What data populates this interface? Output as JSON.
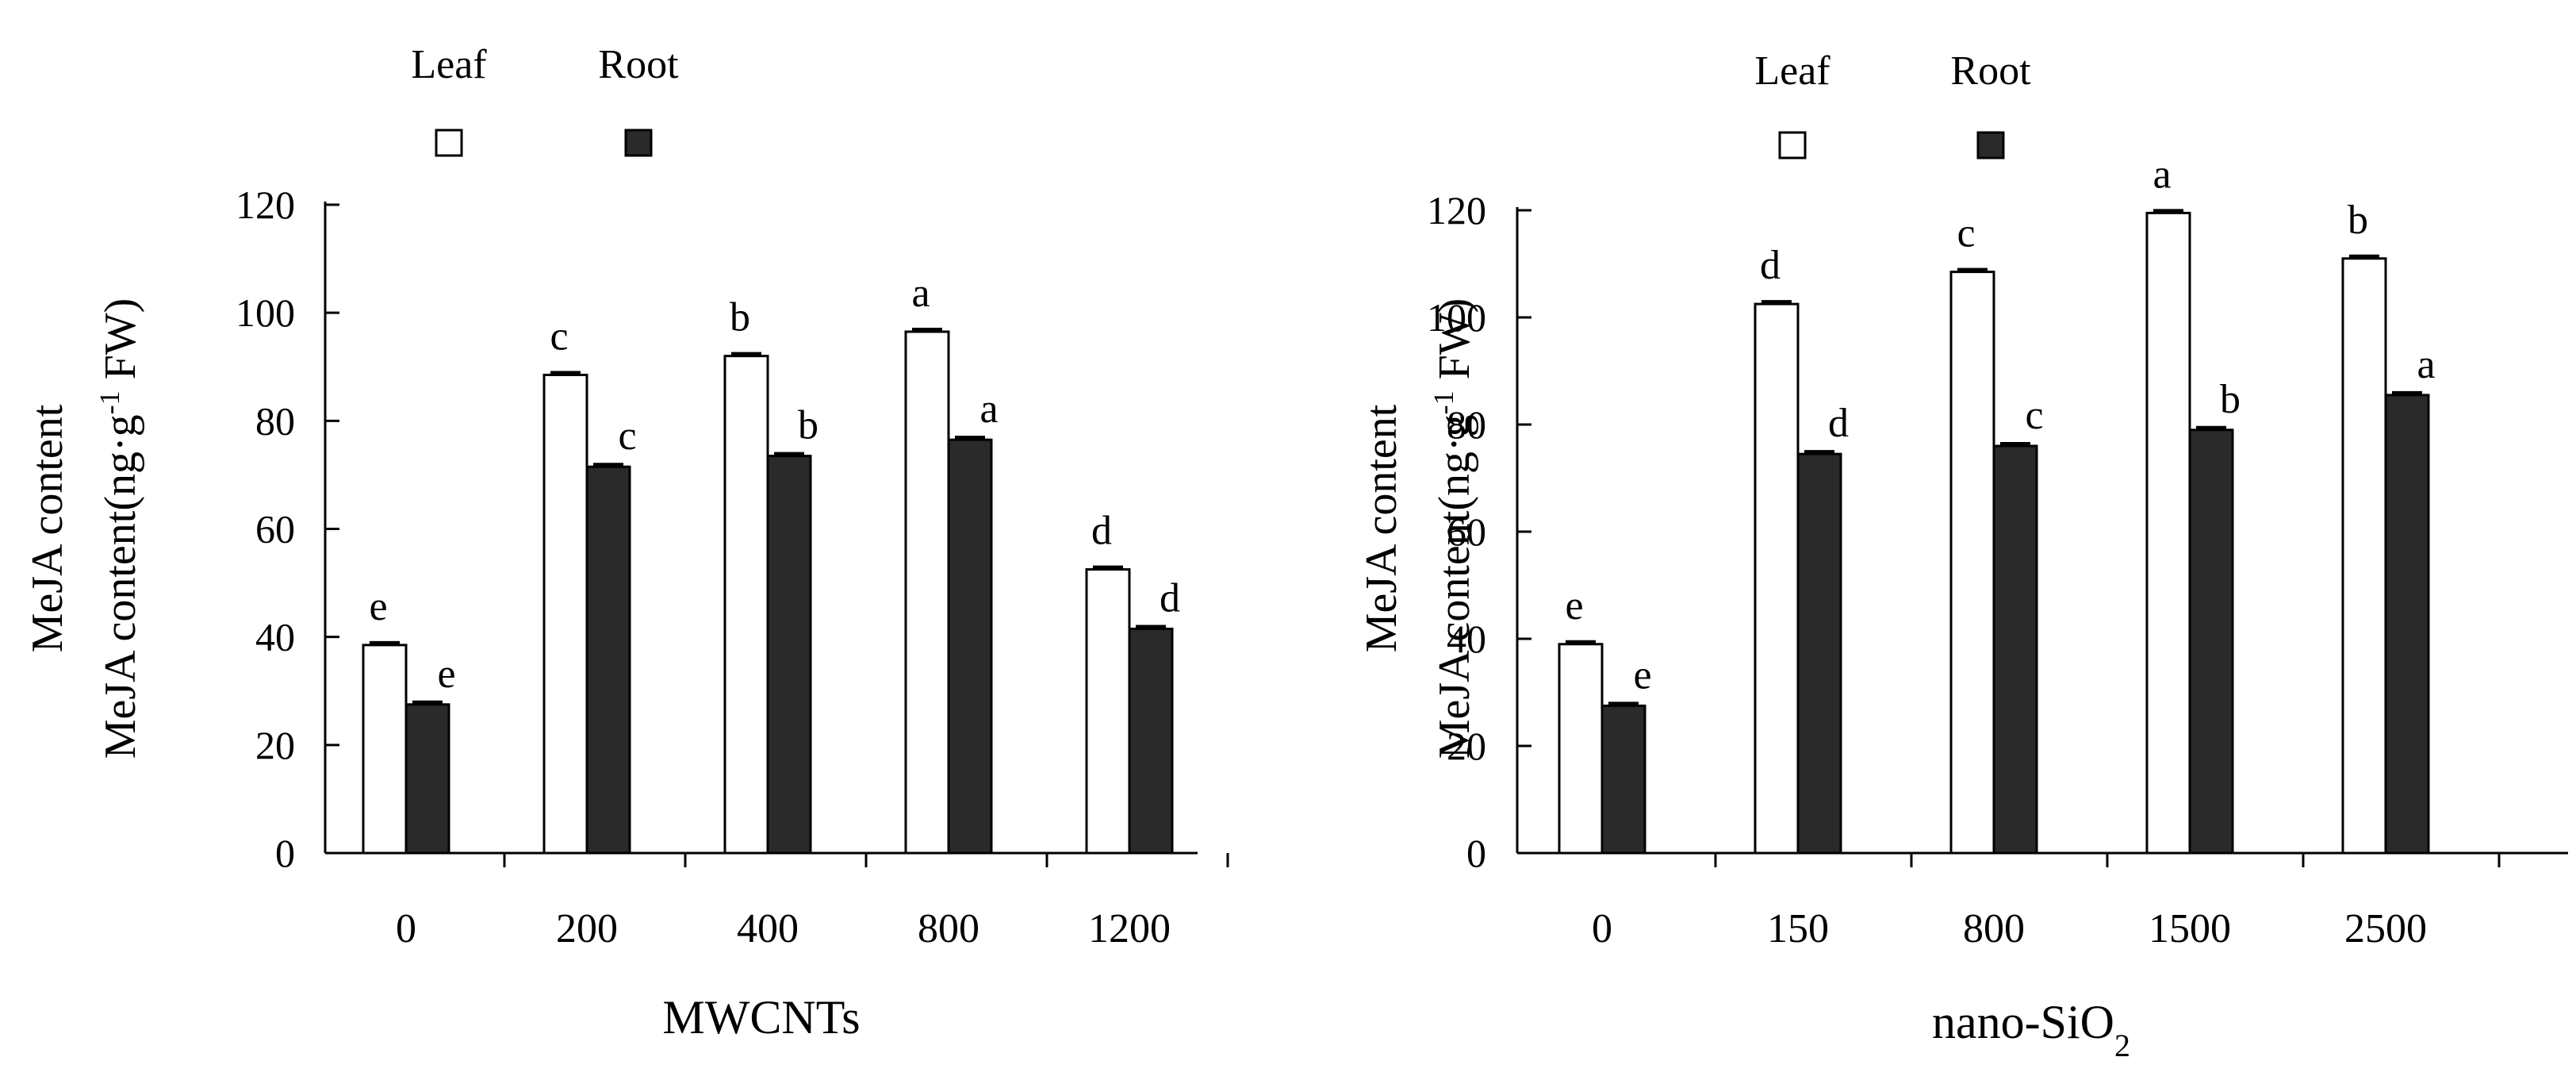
{
  "colors": {
    "leaf": "#ffffff",
    "root": "#2a2a2a",
    "axis": "#000000"
  },
  "chart_data": [
    {
      "type": "bar",
      "xlabel": "MWCNTs",
      "ylabel_line1": "MeJA content",
      "ylabel_line2_prefix": "MeJA content(ng·g",
      "ylabel_sup": "-1",
      "ylabel_line2_suffix": " FW)",
      "ylim": [
        0,
        120
      ],
      "yticks": [
        "0",
        "20",
        "40",
        "60",
        "80",
        "100",
        "120"
      ],
      "categories": [
        "0",
        "200",
        "400",
        "800",
        "1200"
      ],
      "series": [
        {
          "name": "Leaf",
          "key": "leaf",
          "values": [
            38.5,
            88.5,
            92,
            96.5,
            52.5
          ],
          "letters": [
            "e",
            "c",
            "b",
            "a",
            "d"
          ]
        },
        {
          "name": "Root",
          "key": "root",
          "values": [
            27.5,
            71.5,
            73.5,
            76.5,
            41.5
          ],
          "letters": [
            "e",
            "c",
            "b",
            "a",
            "d"
          ]
        }
      ],
      "legend": [
        {
          "label": "Leaf",
          "key": "leaf"
        },
        {
          "label": "Root",
          "key": "root"
        }
      ]
    },
    {
      "type": "bar",
      "xlabel": "nano-SiO",
      "xlabel_sub": "2",
      "ylabel_line1": "MeJA content",
      "ylabel_line2_prefix": "MeJA content(ng·g",
      "ylabel_sup": "-1",
      "ylabel_line2_suffix": " FW)",
      "ylim": [
        0,
        120
      ],
      "yticks": [
        "0",
        "20",
        "40",
        "60",
        "80",
        "100",
        "120"
      ],
      "categories": [
        "0",
        "150",
        "800",
        "1500",
        "2500"
      ],
      "series": [
        {
          "name": "Leaf",
          "key": "leaf",
          "values": [
            39,
            102.5,
            108.5,
            119.5,
            111
          ],
          "letters": [
            "e",
            "d",
            "c",
            "a",
            "b"
          ]
        },
        {
          "name": "Root",
          "key": "root",
          "values": [
            27.5,
            74.5,
            76,
            79,
            85.5
          ],
          "letters": [
            "e",
            "d",
            "c",
            "b",
            "a"
          ]
        }
      ],
      "legend": [
        {
          "label": "Leaf",
          "key": "leaf"
        },
        {
          "label": "Root",
          "key": "root"
        }
      ]
    }
  ]
}
